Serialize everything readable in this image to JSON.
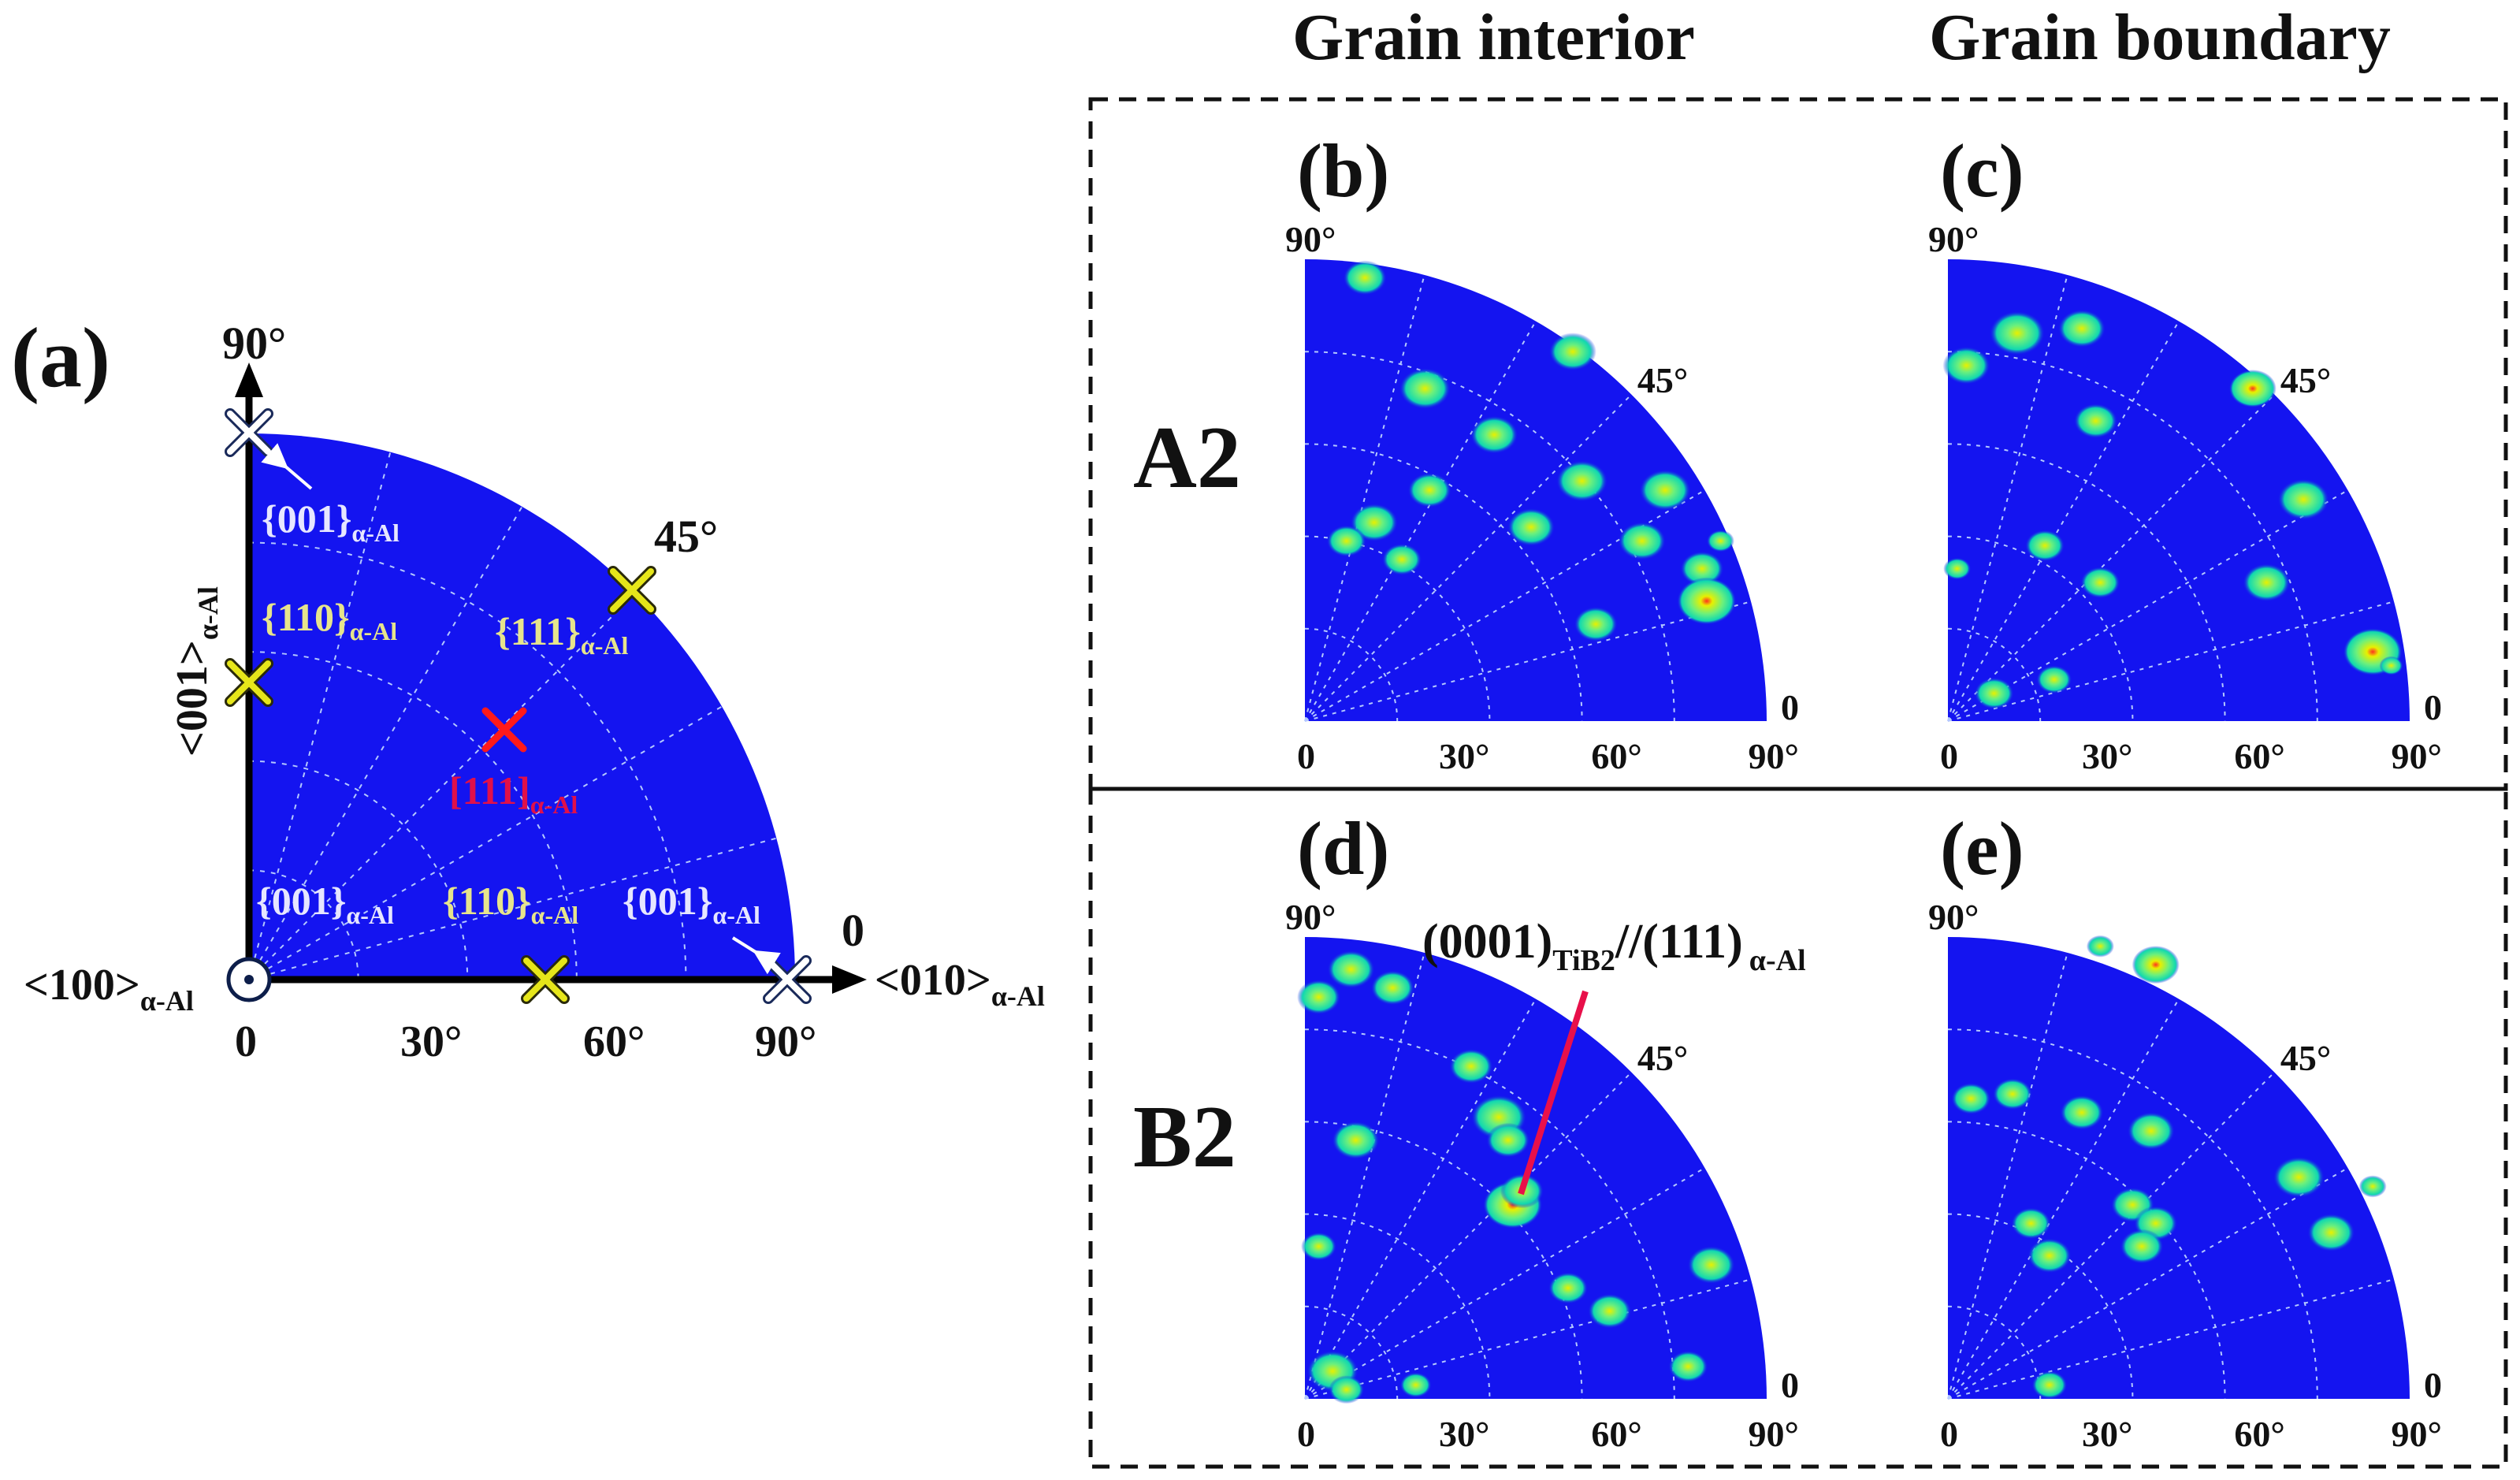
{
  "panel_a": {
    "label": "(a)",
    "axis_x_label": "<010>",
    "axis_x_sub": "α-Al",
    "axis_y_label": "<001>",
    "axis_y_sub": "α-Al",
    "origin_label": "<100>",
    "origin_sub": "α-Al",
    "top_label": "90°",
    "diag_label": "45°",
    "right_label": "0",
    "ticks": [
      "0",
      "30°",
      "60°",
      "90°"
    ],
    "poles": {
      "top": {
        "text": "{001}",
        "sub": "α-Al"
      },
      "mid_left": {
        "text": "{110}",
        "sub": "α-Al"
      },
      "diag": {
        "text": "{111}",
        "sub": "α-Al"
      },
      "center_red": {
        "text": "[111]",
        "sub": "α-Al"
      },
      "bottom_left": {
        "text": "{001}",
        "sub": "α-Al"
      },
      "bottom_mid": {
        "text": "{110}",
        "sub": "α-Al"
      },
      "bottom_right": {
        "text": "{001}",
        "sub": "α-Al"
      }
    }
  },
  "headers": {
    "grain_interior": "Grain interior",
    "grain_boundary": "Grain boundary"
  },
  "rows": {
    "a2": "A2",
    "b2": "B2"
  },
  "subplots": [
    {
      "label": "(b)",
      "top": "90°",
      "diag": "45°",
      "right": "0",
      "ticks": [
        "0",
        "30°",
        "60°",
        "90°"
      ]
    },
    {
      "label": "(c)",
      "top": "90°",
      "diag": "45°",
      "right": "0",
      "ticks": [
        "0",
        "30°",
        "60°",
        "90°"
      ]
    },
    {
      "label": "(d)",
      "top": "90°",
      "diag": "45°",
      "right": "0",
      "ticks": [
        "0",
        "30°",
        "60°",
        "90°"
      ]
    },
    {
      "label": "(e)",
      "top": "90°",
      "diag": "45°",
      "right": "0",
      "ticks": [
        "0",
        "30°",
        "60°",
        "90°"
      ]
    }
  ],
  "annotation": {
    "main": "(0001)",
    "sub1": "TiB2",
    "mid": "//(111)",
    "sub2": "α-Al"
  },
  "colors": {
    "background": "#1414f0",
    "grid": "#b4c8ff",
    "spot_outer": "#10d8b0",
    "spot_mid": "#6cf07c",
    "spot_core": "#e8f000",
    "spot_hot": "#ff3020",
    "marker_yellow": "#e6e61a",
    "marker_red": "#ff1a1a",
    "marker_white": "#ffffff",
    "annotation_line": "#e8104a"
  }
}
